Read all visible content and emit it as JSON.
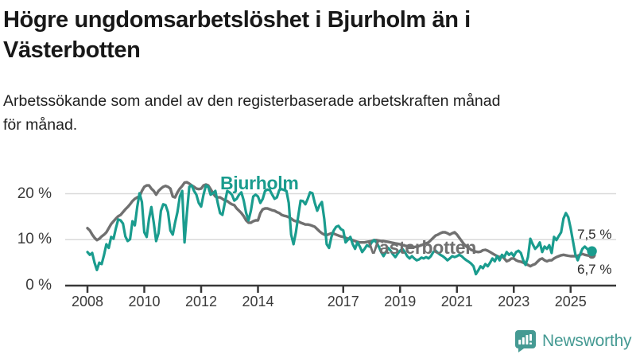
{
  "header": {
    "title_line1": "Högre ungdomsarbetslöshet i Bjurholm än i",
    "title_line2": "Västerbotten",
    "subtitle_line1": "Arbetssökande som andel av den registerbaserade arbetskraften månad",
    "subtitle_line2": "för månad."
  },
  "chart_data": {
    "type": "line",
    "title": "Högre ungdomsarbetslöshet i Bjurholm än i Västerbotten",
    "x_unit": "month",
    "x_start": "2008-01",
    "x_end": "2025-10",
    "x_tick_years": [
      2008,
      2010,
      2012,
      2014,
      2017,
      2019,
      2021,
      2023,
      2025
    ],
    "y_ticks": [
      {
        "value": 0,
        "label": "0 %"
      },
      {
        "value": 10,
        "label": "10 %"
      },
      {
        "value": 20,
        "label": "20 %"
      }
    ],
    "ylim": [
      0,
      23.5
    ],
    "grid": "horizontal-only",
    "legend_position": "inline-labels",
    "series": [
      {
        "name": "Västerbotten",
        "color": "#707070",
        "end_label": "6,7 %",
        "end_value": 6.7,
        "values": [
          12.5,
          12.0,
          11.1,
          10.4,
          9.9,
          10.2,
          10.7,
          11.1,
          11.6,
          12.5,
          13.4,
          14.0,
          14.6,
          15.1,
          15.4,
          16.0,
          16.6,
          17.1,
          17.7,
          18.4,
          18.9,
          19.2,
          19.4,
          20.6,
          21.5,
          21.8,
          21.8,
          21.1,
          20.6,
          19.8,
          20.6,
          21.1,
          21.5,
          21.7,
          21.5,
          21.1,
          19.4,
          19.2,
          20.3,
          21.1,
          21.7,
          22.4,
          22.5,
          22.2,
          21.8,
          21.5,
          21.1,
          21.0,
          21.1,
          21.8,
          22.0,
          21.8,
          21.0,
          20.1,
          19.4,
          19.2,
          19.2,
          18.9,
          18.5,
          18.4,
          18.0,
          17.7,
          17.5,
          16.8,
          16.3,
          15.8,
          15.1,
          14.2,
          13.7,
          13.7,
          14.0,
          14.2,
          14.2,
          15.8,
          16.6,
          16.8,
          16.8,
          16.6,
          16.4,
          16.3,
          16.0,
          15.8,
          15.4,
          15.2,
          15.1,
          14.9,
          14.6,
          14.2,
          14.0,
          14.0,
          13.7,
          13.5,
          13.3,
          13.3,
          13.2,
          13.0,
          12.8,
          12.3,
          11.8,
          11.4,
          11.1,
          11.0,
          11.2,
          11.4,
          11.3,
          11.1,
          10.9,
          10.7,
          10.6,
          10.4,
          10.2,
          10.1,
          9.9,
          9.7,
          9.5,
          9.4,
          9.4,
          9.4,
          9.5,
          9.6,
          9.7,
          9.9,
          9.9,
          9.8,
          9.7,
          9.7,
          9.6,
          9.5,
          9.4,
          9.3,
          9.2,
          9.1,
          9.0,
          8.8,
          8.7,
          8.6,
          8.5,
          8.4,
          8.4,
          8.5,
          8.6,
          8.8,
          9.0,
          9.2,
          9.4,
          9.9,
          10.4,
          10.9,
          11.1,
          11.4,
          11.6,
          11.6,
          11.4,
          11.1,
          11.4,
          11.6,
          11.1,
          10.4,
          9.7,
          9.0,
          8.5,
          8.2,
          7.8,
          7.6,
          7.4,
          7.3,
          7.4,
          7.7,
          7.8,
          7.6,
          7.3,
          7.0,
          6.7,
          6.4,
          6.2,
          6.4,
          5.9,
          5.3,
          5.5,
          5.9,
          5.9,
          5.5,
          5.3,
          5.2,
          5.0,
          4.7,
          4.5,
          4.2,
          4.5,
          4.7,
          5.2,
          5.7,
          5.9,
          5.5,
          5.3,
          5.5,
          5.5,
          5.9,
          6.2,
          6.4,
          6.6,
          6.7,
          6.6,
          6.5,
          6.4,
          6.4,
          6.4,
          6.5,
          6.7,
          6.9,
          6.7,
          6.6,
          6.5,
          6.7
        ]
      },
      {
        "name": "Bjurholm",
        "color": "#1a9c8e",
        "end_label": "7,5 %",
        "end_value": 7.5,
        "values": [
          7.3,
          6.7,
          7.1,
          5.0,
          3.4,
          5.0,
          4.7,
          6.7,
          9.0,
          8.2,
          10.6,
          10.2,
          12.5,
          14.4,
          14.2,
          13.5,
          10.7,
          9.7,
          10.1,
          14.0,
          13.1,
          17.1,
          20.1,
          18.2,
          11.6,
          10.6,
          14.6,
          17.1,
          13.7,
          9.7,
          11.4,
          16.3,
          17.7,
          17.5,
          16.0,
          12.0,
          11.1,
          13.7,
          16.0,
          19.4,
          20.6,
          9.4,
          15.8,
          21.5,
          21.8,
          20.6,
          19.8,
          18.0,
          17.2,
          19.8,
          21.8,
          21.5,
          19.8,
          20.1,
          20.6,
          18.0,
          15.8,
          15.4,
          18.0,
          20.6,
          20.3,
          19.8,
          18.5,
          18.9,
          19.8,
          20.3,
          18.5,
          15.8,
          14.2,
          16.3,
          19.4,
          19.8,
          19.4,
          18.0,
          18.9,
          20.6,
          20.9,
          20.8,
          19.8,
          18.9,
          19.2,
          20.8,
          21.0,
          20.8,
          20.6,
          18.0,
          11.1,
          9.0,
          11.6,
          15.1,
          18.5,
          18.4,
          17.7,
          18.9,
          20.3,
          20.1,
          18.0,
          16.3,
          17.5,
          18.2,
          14.5,
          9.0,
          8.2,
          10.6,
          12.0,
          12.8,
          13.0,
          12.3,
          12.0,
          9.4,
          10.0,
          10.6,
          9.0,
          8.0,
          9.4,
          8.5,
          7.3,
          8.0,
          8.8,
          8.5,
          9.4,
          9.9,
          9.4,
          8.5,
          7.3,
          6.4,
          7.3,
          8.2,
          7.6,
          6.8,
          6.2,
          7.0,
          7.6,
          8.0,
          7.3,
          6.4,
          5.9,
          6.4,
          5.9,
          5.5,
          5.7,
          6.1,
          5.9,
          6.2,
          5.9,
          6.4,
          7.3,
          7.6,
          7.1,
          6.7,
          6.4,
          6.0,
          5.5,
          5.9,
          6.4,
          6.2,
          6.4,
          6.7,
          6.4,
          5.9,
          5.5,
          5.2,
          4.8,
          4.2,
          2.5,
          3.3,
          4.2,
          3.8,
          4.7,
          4.2,
          5.0,
          5.9,
          5.3,
          6.4,
          5.5,
          6.7,
          6.2,
          7.3,
          6.7,
          7.1,
          6.4,
          7.3,
          7.6,
          7.1,
          5.5,
          4.5,
          6.2,
          10.2,
          9.0,
          8.0,
          8.5,
          9.4,
          7.3,
          8.5,
          8.0,
          8.8,
          7.1,
          10.6,
          9.9,
          10.8,
          11.6,
          14.6,
          15.8,
          14.9,
          12.5,
          9.7,
          6.8,
          5.5,
          6.8,
          8.0,
          8.5,
          8.0,
          7.4,
          7.5
        ]
      }
    ]
  },
  "branding": {
    "name": "Newsworthy",
    "color": "#459a93"
  }
}
